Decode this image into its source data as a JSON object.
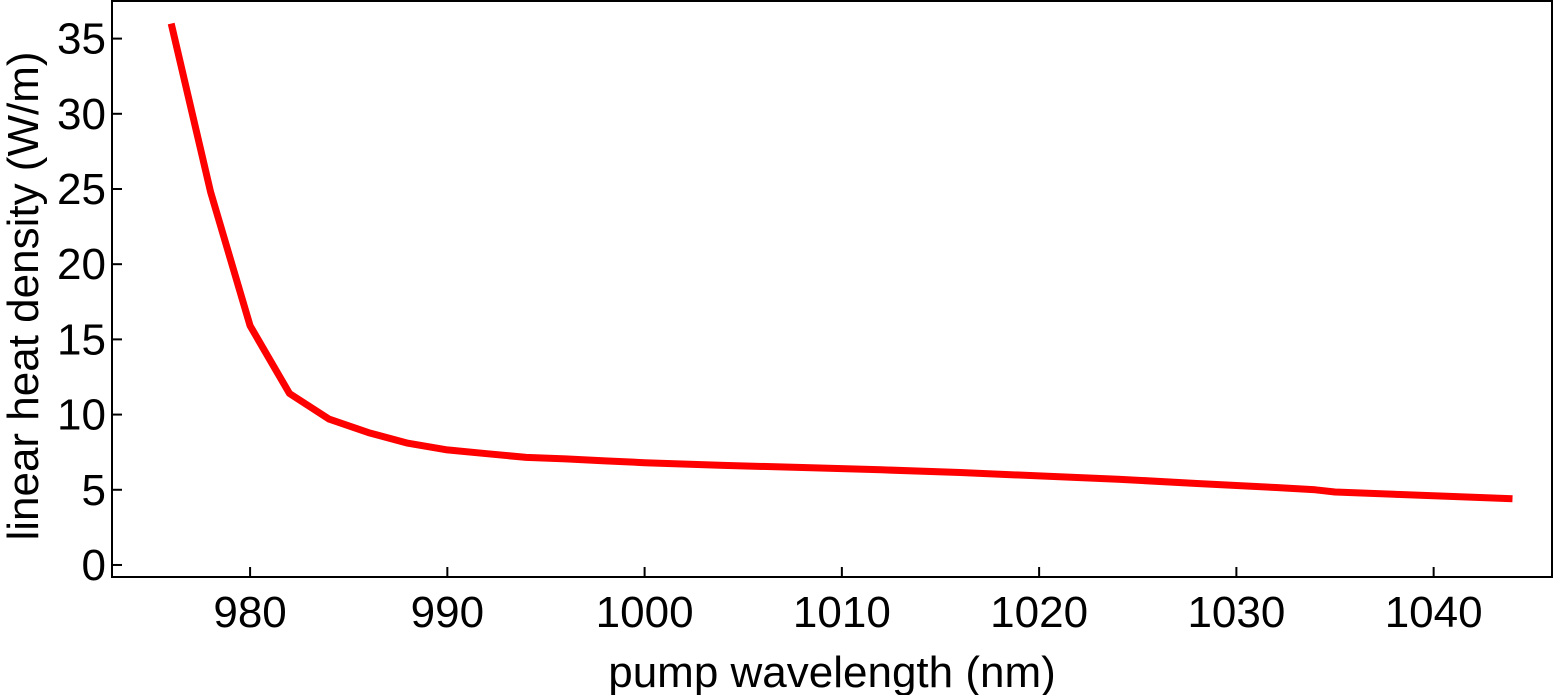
{
  "chart_data": {
    "type": "line",
    "title": "",
    "xlabel": "pump wavelength (nm)",
    "ylabel": "linear heat density (W/m)",
    "xlim": [
      973,
      1046
    ],
    "ylim": [
      -0.8,
      37.5
    ],
    "grid": false,
    "x_ticks": [
      980,
      990,
      1000,
      1010,
      1020,
      1030,
      1040
    ],
    "y_ticks": [
      0,
      5,
      10,
      15,
      20,
      25,
      30,
      35
    ],
    "x_tick_labels": [
      "980",
      "990",
      "1000",
      "1010",
      "1020",
      "1030",
      "1040"
    ],
    "y_tick_labels": [
      "0",
      "5",
      "10",
      "15",
      "20",
      "25",
      "30",
      "35"
    ],
    "series": [
      {
        "name": "linear heat density",
        "color": "#ff0000",
        "x": [
          976,
          978,
          980,
          982,
          984,
          986,
          988,
          990,
          992,
          994,
          996,
          998,
          1000,
          1004,
          1008,
          1012,
          1016,
          1020,
          1024,
          1028,
          1032,
          1034,
          1035,
          1038,
          1041,
          1044
        ],
        "y": [
          36,
          24.8,
          15.9,
          11.4,
          9.7,
          8.8,
          8.1,
          7.65,
          7.4,
          7.15,
          7.05,
          6.92,
          6.8,
          6.62,
          6.48,
          6.33,
          6.15,
          5.92,
          5.7,
          5.42,
          5.15,
          5.0,
          4.85,
          4.7,
          4.55,
          4.4
        ]
      }
    ]
  }
}
